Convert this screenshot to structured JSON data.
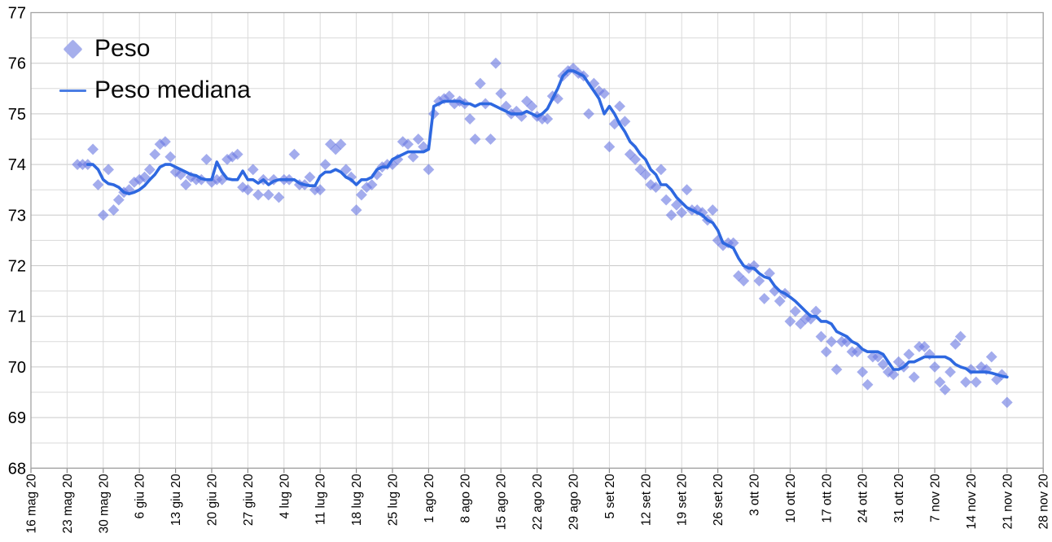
{
  "chart_data": {
    "type": "scatter+line",
    "title": "",
    "xlabel": "",
    "ylabel": "",
    "ylim": [
      68,
      77
    ],
    "y_tick_step": 1,
    "y_minor_step": 0.5,
    "grid": true,
    "legend_position": "top-left-inside",
    "y_tick_labels": [
      "77",
      "76",
      "75",
      "74",
      "73",
      "72",
      "71",
      "70",
      "69",
      "68"
    ],
    "x_tick_labels": [
      "16 mag 20",
      "23 mag 20",
      "30 mag 20",
      "6 giu 20",
      "13 giu 20",
      "20 giu 20",
      "27 giu 20",
      "4 lug 20",
      "11 lug 20",
      "18 lug 20",
      "25 lug 20",
      "1 ago 20",
      "8 ago 20",
      "15 ago 20",
      "22 ago 20",
      "29 ago 20",
      "5 set 20",
      "12 set 20",
      "19 set 20",
      "26 set 20",
      "3 ott 20",
      "10 ott 20",
      "17 ott 20",
      "24 ott 20",
      "31 ott 20",
      "7 nov 20",
      "14 nov 20",
      "21 nov 20",
      "28 nov 20"
    ],
    "x_axis_start_tick_date": "2020-05-16",
    "x_tick_interval_days": 7,
    "data_start_date": "2020-05-25",
    "data_interval_days": 1,
    "series": [
      {
        "name": "Peso",
        "marker": "diamond",
        "color": "#6b79e2",
        "opacity": 0.62,
        "values": [
          74.0,
          74.0,
          74.0,
          74.3,
          73.6,
          73.0,
          73.9,
          73.1,
          73.3,
          73.45,
          73.5,
          73.65,
          73.7,
          73.75,
          73.9,
          74.2,
          74.4,
          74.45,
          74.15,
          73.85,
          73.8,
          73.6,
          73.75,
          73.7,
          73.7,
          74.1,
          73.65,
          73.7,
          73.7,
          74.1,
          74.15,
          74.2,
          73.55,
          73.5,
          73.9,
          73.4,
          73.7,
          73.4,
          73.7,
          73.35,
          73.7,
          73.7,
          74.2,
          73.6,
          73.6,
          73.75,
          73.5,
          73.5,
          74.0,
          74.4,
          74.3,
          74.4,
          73.9,
          73.75,
          73.1,
          73.4,
          73.55,
          73.6,
          73.8,
          73.95,
          74.0,
          74.0,
          74.1,
          74.45,
          74.4,
          74.15,
          74.5,
          74.35,
          73.9,
          75.0,
          75.25,
          75.3,
          75.35,
          75.2,
          75.25,
          75.2,
          74.9,
          74.5,
          75.6,
          75.2,
          74.5,
          76.0,
          75.4,
          75.15,
          75.0,
          75.05,
          74.95,
          75.25,
          75.15,
          74.95,
          74.9,
          74.9,
          75.35,
          75.3,
          75.75,
          75.85,
          75.9,
          75.8,
          75.75,
          75.0,
          75.6,
          75.45,
          75.4,
          74.35,
          74.8,
          75.15,
          74.85,
          74.2,
          74.1,
          73.9,
          73.8,
          73.6,
          73.55,
          73.9,
          73.3,
          73.0,
          73.2,
          73.05,
          73.5,
          73.1,
          73.1,
          73.05,
          72.9,
          73.1,
          72.5,
          72.4,
          72.45,
          72.45,
          71.8,
          71.7,
          71.95,
          72.0,
          71.7,
          71.35,
          71.85,
          71.5,
          71.3,
          71.45,
          70.9,
          71.1,
          70.85,
          70.95,
          70.95,
          71.1,
          70.6,
          70.3,
          70.5,
          69.95,
          70.5,
          70.5,
          70.3,
          70.3,
          69.9,
          69.65,
          70.2,
          70.2,
          70.05,
          69.9,
          69.85,
          70.1,
          70.0,
          70.25,
          69.8,
          70.4,
          70.4,
          70.25,
          70.0,
          69.7,
          69.55,
          69.9,
          70.45,
          70.6,
          69.7,
          69.95,
          69.7,
          70.0,
          69.95,
          70.2,
          69.75,
          69.85,
          69.3
        ]
      },
      {
        "name": "Peso mediana",
        "marker": "line",
        "color": "#2e68e0",
        "line_width": 3.6,
        "values": [
          null,
          null,
          74.0,
          74.0,
          73.9,
          73.7,
          73.62,
          73.6,
          73.55,
          73.45,
          73.42,
          73.45,
          73.5,
          73.58,
          73.7,
          73.8,
          73.95,
          74.0,
          74.0,
          73.95,
          73.9,
          73.85,
          73.8,
          73.78,
          73.72,
          73.7,
          73.7,
          74.05,
          73.85,
          73.72,
          73.7,
          73.7,
          73.87,
          73.7,
          73.7,
          73.63,
          73.7,
          73.6,
          73.67,
          73.7,
          73.7,
          73.7,
          73.7,
          73.63,
          73.6,
          73.58,
          73.58,
          73.77,
          73.85,
          73.85,
          73.9,
          73.85,
          73.75,
          73.7,
          73.6,
          73.7,
          73.7,
          73.75,
          73.9,
          73.95,
          73.95,
          74.1,
          74.15,
          74.2,
          74.25,
          74.25,
          74.25,
          74.25,
          74.3,
          75.15,
          75.2,
          75.25,
          75.25,
          75.25,
          75.25,
          75.2,
          75.2,
          75.15,
          75.2,
          75.2,
          75.2,
          75.15,
          75.1,
          75.05,
          75.0,
          75.0,
          75.0,
          75.05,
          75.0,
          74.95,
          75.0,
          75.1,
          75.3,
          75.5,
          75.75,
          75.85,
          75.85,
          75.8,
          75.75,
          75.6,
          75.45,
          75.3,
          75.0,
          75.15,
          75.0,
          74.8,
          74.65,
          74.45,
          74.35,
          74.2,
          74.1,
          73.9,
          73.8,
          73.6,
          73.6,
          73.5,
          73.35,
          73.25,
          73.15,
          73.1,
          73.05,
          73.0,
          72.9,
          72.85,
          72.7,
          72.45,
          72.4,
          72.35,
          72.15,
          72.0,
          71.95,
          71.95,
          71.85,
          71.78,
          71.75,
          71.6,
          71.5,
          71.45,
          71.38,
          71.3,
          71.2,
          71.1,
          71.0,
          71.0,
          70.9,
          70.9,
          70.85,
          70.7,
          70.65,
          70.6,
          70.5,
          70.45,
          70.35,
          70.3,
          70.3,
          70.3,
          70.25,
          70.1,
          69.95,
          69.95,
          70.0,
          70.1,
          70.1,
          70.15,
          70.2,
          70.2,
          70.2,
          70.2,
          70.2,
          70.15,
          70.05,
          70.0,
          69.97,
          69.9,
          69.9,
          69.9,
          69.9,
          69.88,
          69.85,
          69.82,
          69.8
        ]
      }
    ],
    "style": {
      "grid_minor_color": "#dadada",
      "grid_major_color": "#c9c9c9",
      "border_color": "#a3a3a3",
      "tick_color": "#8a8a8a",
      "label_color": "#000000",
      "background": "#ffffff"
    }
  },
  "legend": {
    "peso_label": "Peso",
    "peso_mediana_label": "Peso mediana"
  }
}
